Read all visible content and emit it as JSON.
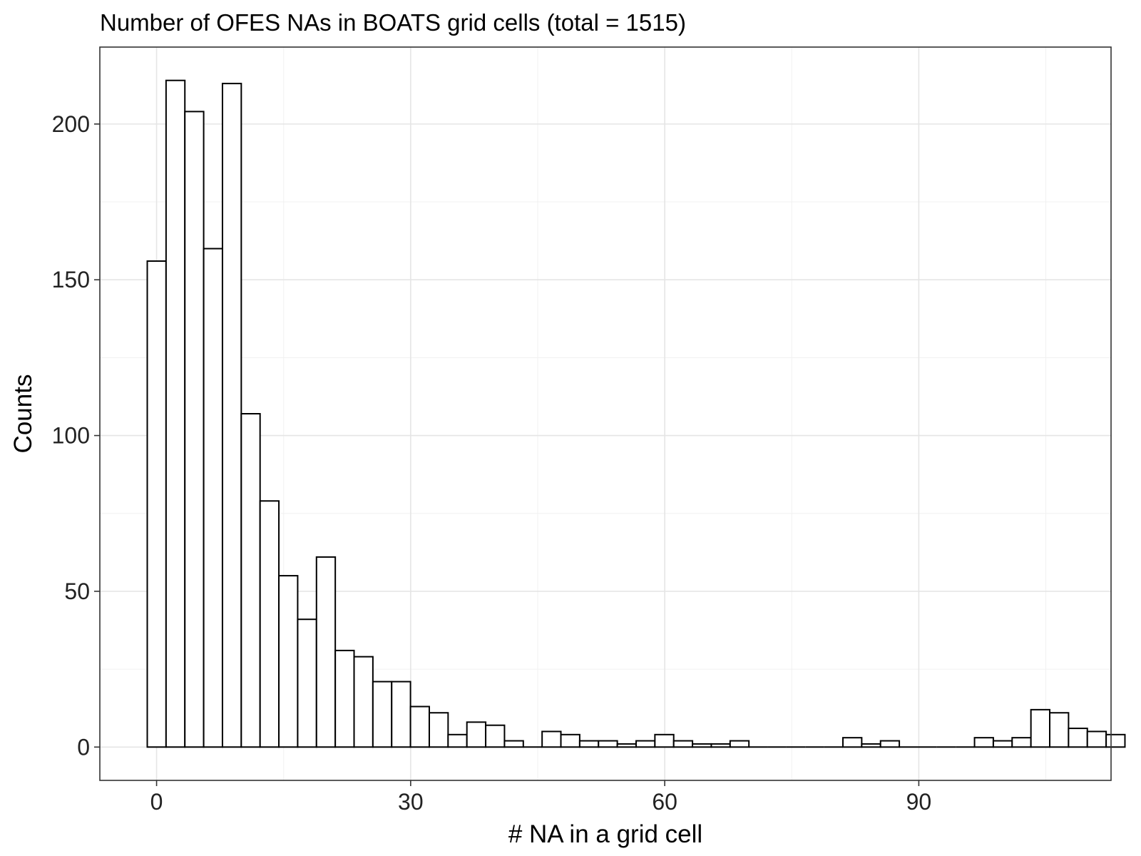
{
  "chart_data": {
    "type": "bar",
    "title": "Number of OFES NAs in BOATS grid cells (total = 1515)",
    "xlabel": "# NA in a grid cell",
    "ylabel": "Counts",
    "xlim": [
      -6.7,
      112.7
    ],
    "ylim": [
      -10.7,
      224.7
    ],
    "x_ticks": [
      0,
      30,
      60,
      90
    ],
    "x_tick_labels": [
      "0",
      "30",
      "60",
      "90"
    ],
    "y_ticks": [
      0,
      50,
      100,
      150,
      200
    ],
    "y_tick_labels": [
      "0",
      "50",
      "100",
      "150",
      "200"
    ],
    "grid": true,
    "bin_width": 2.22,
    "bin_start": -1.1,
    "values": [
      156,
      214,
      204,
      160,
      213,
      107,
      79,
      55,
      41,
      61,
      31,
      29,
      21,
      21,
      13,
      11,
      4,
      8,
      7,
      2,
      0,
      5,
      4,
      2,
      2,
      1,
      2,
      4,
      2,
      1,
      1,
      2,
      0,
      0,
      0,
      0,
      0,
      3,
      1,
      2,
      0,
      0,
      0,
      0,
      3,
      2,
      3,
      12,
      11,
      6,
      5,
      4
    ]
  }
}
